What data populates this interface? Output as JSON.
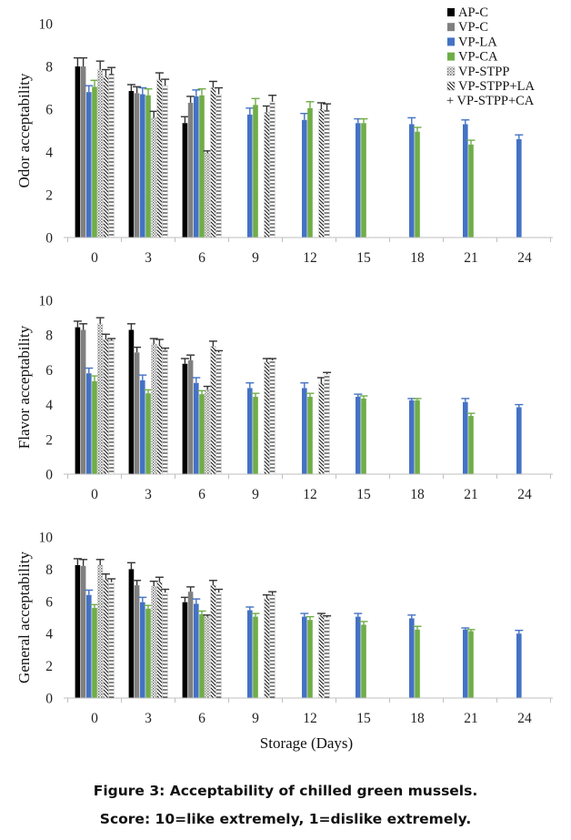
{
  "caption": {
    "line1": "Figure 3: Acceptability of chilled green mussels.",
    "line2": "Score: 10=like extremely, 1=dislike extremely."
  },
  "colors": {
    "AP-C": "#000000",
    "VP-C": "#808080",
    "VP-LA": "#4472c4",
    "VP-CA": "#70ad47",
    "VP-STPP": "#a6a6a6",
    "VP-STPP+LA": "#000000",
    "VP-STPP+CA": "#000000"
  },
  "chart_data": [
    {
      "type": "bar",
      "ylabel": "Odor acceptability",
      "xlabel": "",
      "categories": [
        "0",
        "3",
        "6",
        "9",
        "12",
        "15",
        "18",
        "21",
        "24"
      ],
      "ylim": [
        0,
        10
      ],
      "yticks": [
        "0",
        "2",
        "4",
        "6",
        "8",
        "10"
      ],
      "grid": false,
      "legend_position": "top-right",
      "series": [
        {
          "name": "AP-C",
          "pattern": "solid",
          "values": [
            8.0,
            6.85,
            5.35,
            null,
            null,
            null,
            null,
            null,
            null
          ],
          "errors": [
            0.4,
            0.3,
            0.3,
            null,
            null,
            null,
            null,
            null,
            null
          ]
        },
        {
          "name": "VP-C",
          "pattern": "solid",
          "values": [
            8.0,
            6.75,
            6.3,
            null,
            null,
            null,
            null,
            null,
            null
          ],
          "errors": [
            0.4,
            0.3,
            0.3,
            null,
            null,
            null,
            null,
            null,
            null
          ]
        },
        {
          "name": "VP-LA",
          "pattern": "solid",
          "values": [
            6.8,
            6.7,
            6.6,
            5.75,
            5.5,
            5.35,
            5.3,
            5.3,
            4.6
          ],
          "errors": [
            0.3,
            0.3,
            0.3,
            0.3,
            0.3,
            0.2,
            0.3,
            0.2,
            0.2
          ]
        },
        {
          "name": "VP-CA",
          "pattern": "solid",
          "values": [
            7.05,
            6.65,
            6.65,
            6.2,
            6.05,
            5.35,
            4.95,
            4.35,
            null
          ],
          "errors": [
            0.3,
            0.3,
            0.3,
            0.3,
            0.3,
            0.2,
            0.2,
            0.2,
            null
          ]
        },
        {
          "name": "VP-STPP",
          "pattern": "dots",
          "values": [
            7.85,
            5.6,
            3.95,
            null,
            null,
            null,
            null,
            null,
            null
          ],
          "errors": [
            0.4,
            0.3,
            0.1,
            null,
            null,
            null,
            null,
            null,
            null
          ]
        },
        {
          "name": "VP-STPP+LA",
          "pattern": "diagonal",
          "values": [
            7.55,
            7.4,
            7.0,
            5.85,
            6.0,
            null,
            null,
            null,
            null
          ],
          "errors": [
            0.3,
            0.3,
            0.3,
            0.3,
            0.3,
            null,
            null,
            null,
            null
          ]
        },
        {
          "name": "VP-STPP+CA",
          "pattern": "ladder",
          "values": [
            7.65,
            7.1,
            6.7,
            6.35,
            5.95,
            null,
            null,
            null,
            null
          ],
          "errors": [
            0.3,
            0.3,
            0.3,
            0.3,
            0.3,
            null,
            null,
            null,
            null
          ]
        }
      ]
    },
    {
      "type": "bar",
      "ylabel": "Flavor acceptability",
      "xlabel": "",
      "categories": [
        "0",
        "3",
        "6",
        "9",
        "12",
        "15",
        "18",
        "21",
        "24"
      ],
      "ylim": [
        0,
        10
      ],
      "yticks": [
        "0",
        "2",
        "4",
        "6",
        "8",
        "10"
      ],
      "grid": false,
      "series": [
        {
          "name": "AP-C",
          "pattern": "solid",
          "values": [
            8.45,
            8.3,
            6.35,
            null,
            null,
            null,
            null,
            null,
            null
          ],
          "errors": [
            0.35,
            0.35,
            0.3,
            null,
            null,
            null,
            null,
            null,
            null
          ]
        },
        {
          "name": "VP-C",
          "pattern": "solid",
          "values": [
            8.3,
            7.0,
            6.55,
            null,
            null,
            null,
            null,
            null,
            null
          ],
          "errors": [
            0.35,
            0.3,
            0.3,
            null,
            null,
            null,
            null,
            null,
            null
          ]
        },
        {
          "name": "VP-LA",
          "pattern": "solid",
          "values": [
            5.8,
            5.4,
            5.25,
            4.95,
            4.95,
            4.45,
            4.25,
            4.15,
            3.85
          ],
          "errors": [
            0.3,
            0.3,
            0.3,
            0.3,
            0.3,
            0.15,
            0.1,
            0.2,
            0.15
          ]
        },
        {
          "name": "VP-CA",
          "pattern": "solid",
          "values": [
            5.35,
            4.65,
            4.6,
            4.45,
            4.45,
            4.35,
            4.25,
            3.35,
            null
          ],
          "errors": [
            0.3,
            0.2,
            0.2,
            0.2,
            0.2,
            0.15,
            0.1,
            0.15,
            null
          ]
        },
        {
          "name": "VP-STPP",
          "pattern": "dots",
          "values": [
            8.65,
            7.5,
            4.85,
            null,
            null,
            null,
            null,
            null,
            null
          ],
          "errors": [
            0.35,
            0.3,
            0.2,
            null,
            null,
            null,
            null,
            null,
            null
          ]
        },
        {
          "name": "VP-STPP+LA",
          "pattern": "diagonal",
          "values": [
            7.75,
            7.45,
            7.35,
            6.45,
            5.25,
            null,
            null,
            null,
            null
          ],
          "errors": [
            0.3,
            0.3,
            0.3,
            0.2,
            0.3,
            null,
            null,
            null,
            null
          ]
        },
        {
          "name": "VP-STPP+CA",
          "pattern": "ladder",
          "values": [
            7.7,
            7.15,
            7.0,
            6.55,
            5.75,
            null,
            null,
            null,
            null
          ],
          "errors": [
            0.1,
            0.1,
            0.1,
            0.1,
            0.1,
            null,
            null,
            null,
            null
          ]
        }
      ]
    },
    {
      "type": "bar",
      "ylabel": "General acceptability",
      "xlabel": "Storage (Days)",
      "categories": [
        "0",
        "3",
        "6",
        "9",
        "12",
        "15",
        "18",
        "21",
        "24"
      ],
      "ylim": [
        0,
        10
      ],
      "yticks": [
        "0",
        "2",
        "4",
        "6",
        "8",
        "10"
      ],
      "grid": false,
      "series": [
        {
          "name": "AP-C",
          "pattern": "solid",
          "values": [
            8.25,
            8.0,
            5.95,
            null,
            null,
            null,
            null,
            null,
            null
          ],
          "errors": [
            0.4,
            0.4,
            0.3,
            null,
            null,
            null,
            null,
            null,
            null
          ]
        },
        {
          "name": "VP-C",
          "pattern": "solid",
          "values": [
            8.2,
            7.0,
            6.6,
            null,
            null,
            null,
            null,
            null,
            null
          ],
          "errors": [
            0.4,
            0.3,
            0.3,
            null,
            null,
            null,
            null,
            null,
            null
          ]
        },
        {
          "name": "VP-LA",
          "pattern": "solid",
          "values": [
            6.4,
            5.95,
            5.85,
            5.45,
            5.05,
            5.05,
            4.95,
            4.25,
            4.0
          ],
          "errors": [
            0.3,
            0.3,
            0.3,
            0.2,
            0.2,
            0.2,
            0.2,
            0.1,
            0.2
          ]
        },
        {
          "name": "VP-CA",
          "pattern": "solid",
          "values": [
            5.6,
            5.55,
            5.2,
            5.05,
            4.85,
            4.55,
            4.25,
            4.15,
            null
          ],
          "errors": [
            0.2,
            0.2,
            0.2,
            0.2,
            0.2,
            0.2,
            0.2,
            0.1,
            null
          ]
        },
        {
          "name": "VP-STPP",
          "pattern": "dots",
          "values": [
            8.25,
            6.95,
            5.05,
            null,
            null,
            null,
            null,
            null,
            null
          ],
          "errors": [
            0.35,
            0.3,
            0.1,
            null,
            null,
            null,
            null,
            null,
            null
          ]
        },
        {
          "name": "VP-STPP+LA",
          "pattern": "diagonal",
          "values": [
            7.4,
            7.2,
            7.0,
            6.2,
            5.15,
            null,
            null,
            null,
            null
          ],
          "errors": [
            0.3,
            0.3,
            0.3,
            0.2,
            0.1,
            null,
            null,
            null,
            null
          ]
        },
        {
          "name": "VP-STPP+CA",
          "pattern": "ladder",
          "values": [
            7.2,
            6.55,
            6.55,
            6.4,
            5.0,
            null,
            null,
            null,
            null
          ],
          "errors": [
            0.2,
            0.2,
            0.2,
            0.2,
            0.1,
            null,
            null,
            null,
            null
          ]
        }
      ]
    }
  ],
  "legend": [
    {
      "label": "AP-C",
      "key": "AP-C"
    },
    {
      "label": "VP-C",
      "key": "VP-C"
    },
    {
      "label": "VP-LA",
      "key": "VP-LA"
    },
    {
      "label": "VP-CA",
      "key": "VP-CA"
    },
    {
      "label": "VP-STPP",
      "key": "VP-STPP"
    },
    {
      "label": "VP-STPP+LA",
      "key": "VP-STPP+LA"
    },
    {
      "label": "+ VP-STPP+CA",
      "key": "VP-STPP+CA"
    }
  ]
}
